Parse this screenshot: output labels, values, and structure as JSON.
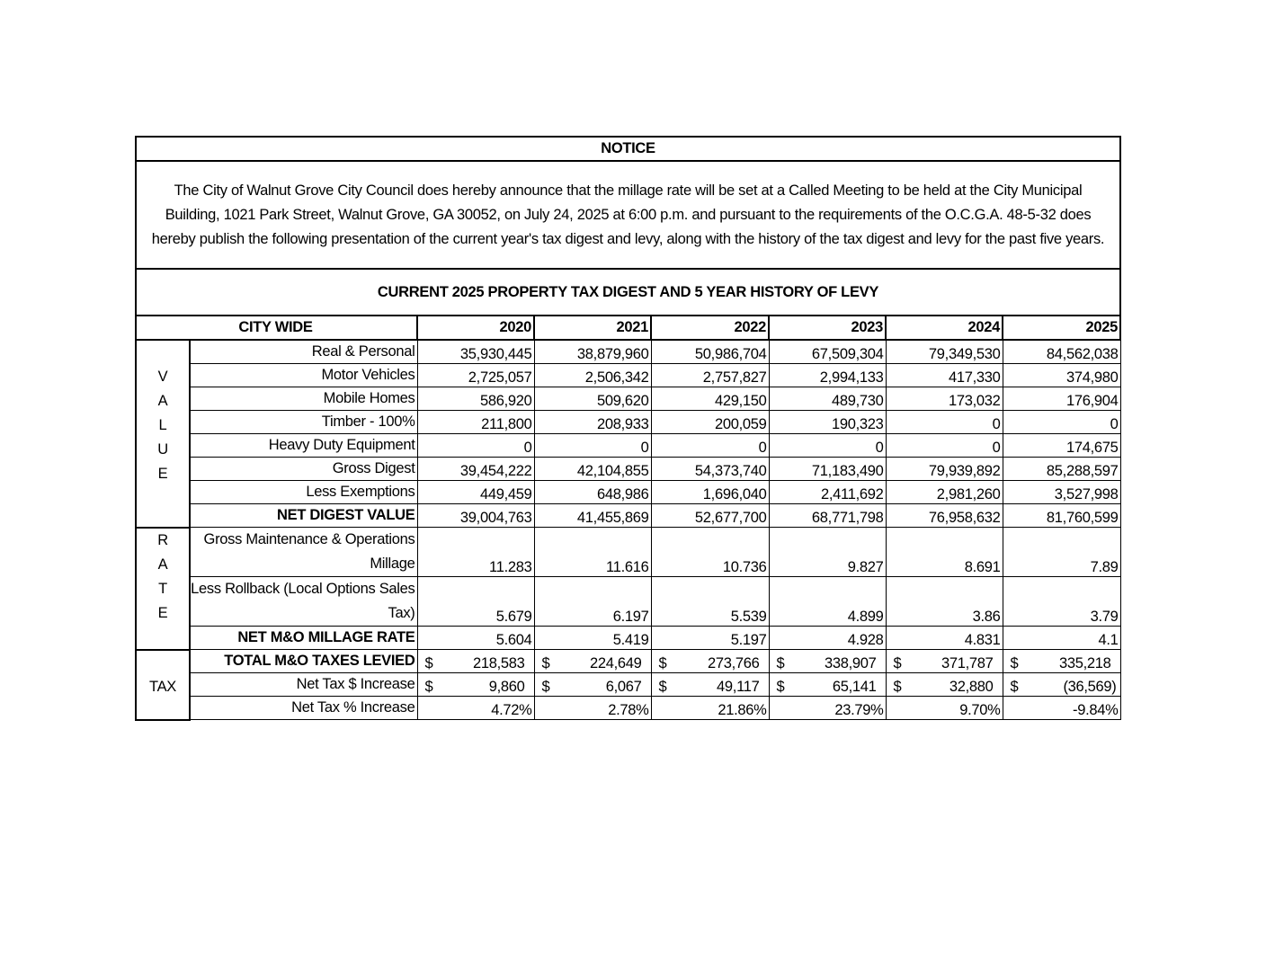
{
  "notice": {
    "title": "NOTICE",
    "body": "The City of Walnut Grove City Council does hereby announce that the millage rate will be set at a Called Meeting to be held at the City Municipal Building, 1021 Park Street, Walnut Grove, GA 30052, on July 24, 2025 at 6:00 p.m. and pursuant to the requirements of the O.C.G.A. 48-5-32 does hereby publish the following presentation of the current year's tax digest and levy, along with the history of the tax digest and levy for the past five years.",
    "subtitle": "CURRENT 2025 PROPERTY TAX DIGEST AND 5 YEAR HISTORY OF LEVY"
  },
  "table": {
    "header_label": "CITY WIDE",
    "years": [
      "2020",
      "2021",
      "2022",
      "2023",
      "2024",
      "2025"
    ],
    "sections": [
      {
        "side_label": [
          "V",
          "A",
          "L",
          "U",
          "E"
        ],
        "rows": [
          {
            "label": "Real & Personal",
            "values": [
              "35,930,445",
              "38,879,960",
              "50,986,704",
              "67,509,304",
              "79,349,530",
              "84,562,038"
            ]
          },
          {
            "label": "Motor Vehicles",
            "values": [
              "2,725,057",
              "2,506,342",
              "2,757,827",
              "2,994,133",
              "417,330",
              "374,980"
            ]
          },
          {
            "label": "Mobile Homes",
            "values": [
              "586,920",
              "509,620",
              "429,150",
              "489,730",
              "173,032",
              "176,904"
            ]
          },
          {
            "label": "Timber - 100%",
            "values": [
              "211,800",
              "208,933",
              "200,059",
              "190,323",
              "0",
              "0"
            ]
          },
          {
            "label": "Heavy Duty Equipment",
            "values": [
              "0",
              "0",
              "0",
              "0",
              "0",
              "174,675"
            ]
          },
          {
            "label": "Gross Digest",
            "values": [
              "39,454,222",
              "42,104,855",
              "54,373,740",
              "71,183,490",
              "79,939,892",
              "85,288,597"
            ]
          },
          {
            "label": "Less Exemptions",
            "values": [
              "449,459",
              "648,986",
              "1,696,040",
              "2,411,692",
              "2,981,260",
              "3,527,998"
            ]
          },
          {
            "label": "NET DIGEST VALUE",
            "bold": true,
            "values": [
              "39,004,763",
              "41,455,869",
              "52,677,700",
              "68,771,798",
              "76,958,632",
              "81,760,599"
            ]
          }
        ]
      },
      {
        "side_label": [
          "R",
          "A",
          "T",
          "E"
        ],
        "rows": [
          {
            "label": "Gross Maintenance & Operations Millage",
            "two_line": true,
            "values": [
              "11.283",
              "11.616",
              "10.736",
              "9.827",
              "8.691",
              "7.89"
            ]
          },
          {
            "label": "Less Rollback (Local Options Sales Tax)",
            "two_line": true,
            "values": [
              "5.679",
              "6.197",
              "5.539",
              "4.899",
              "3.86",
              "3.79"
            ]
          },
          {
            "label": "NET M&O MILLAGE RATE",
            "bold": true,
            "values": [
              "5.604",
              "5.419",
              "5.197",
              "4.928",
              "4.831",
              "4.1"
            ]
          }
        ]
      },
      {
        "side_label": [
          "TAX"
        ],
        "rows": [
          {
            "label": "TOTAL M&O TAXES LEVIED",
            "bold": true,
            "currency": "$",
            "values": [
              "218,583",
              "224,649",
              "273,766",
              "338,907",
              "371,787",
              "335,218"
            ]
          },
          {
            "label": "Net Tax $ Increase",
            "currency": "$",
            "values": [
              "9,860",
              "6,067",
              "49,117",
              "65,141",
              "32,880",
              "(36,569)"
            ]
          },
          {
            "label": "Net Tax % Increase",
            "values": [
              "4.72%",
              "2.78%",
              "21.86%",
              "23.79%",
              "9.70%",
              "-9.84%"
            ]
          }
        ]
      }
    ]
  }
}
